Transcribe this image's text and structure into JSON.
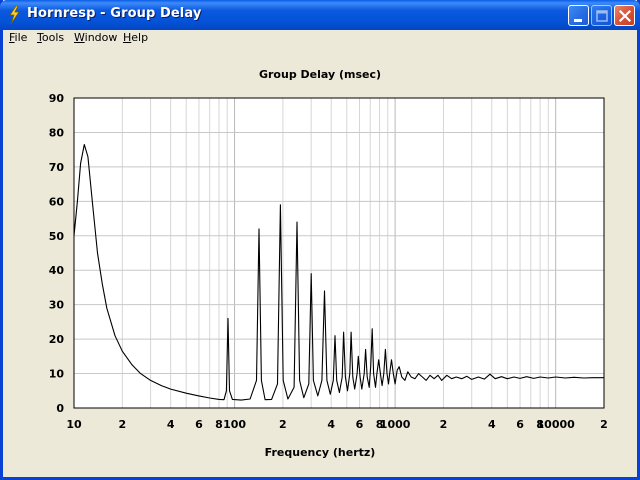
{
  "window": {
    "title": "Hornresp - Group Delay",
    "icon": "lightning-icon"
  },
  "menu": [
    {
      "label": "File",
      "mnemonic": "F",
      "rest": "ile"
    },
    {
      "label": "Tools",
      "mnemonic": "T",
      "rest": "ools"
    },
    {
      "label": "Window",
      "mnemonic": "W",
      "rest": "indow"
    },
    {
      "label": "Help",
      "mnemonic": "H",
      "rest": "elp"
    }
  ],
  "chart_data": {
    "type": "line",
    "title": "Group Delay (msec)",
    "xlabel": "Frequency (hertz)",
    "ylabel": "",
    "xscale": "log",
    "xlim": [
      10,
      20000
    ],
    "ylim": [
      0,
      90
    ],
    "grid": true,
    "yticks": [
      "0",
      "10",
      "20",
      "30",
      "40",
      "50",
      "60",
      "70",
      "80",
      "90"
    ],
    "xticks": [
      {
        "value": 10,
        "label": "10"
      },
      {
        "value": 20,
        "label": "2"
      },
      {
        "value": 40,
        "label": "4"
      },
      {
        "value": 60,
        "label": "6"
      },
      {
        "value": 80,
        "label": "8"
      },
      {
        "value": 100,
        "label": "100"
      },
      {
        "value": 200,
        "label": "2"
      },
      {
        "value": 400,
        "label": "4"
      },
      {
        "value": 600,
        "label": "6"
      },
      {
        "value": 800,
        "label": "8"
      },
      {
        "value": 1000,
        "label": "1000"
      },
      {
        "value": 2000,
        "label": "2"
      },
      {
        "value": 4000,
        "label": "4"
      },
      {
        "value": 6000,
        "label": "6"
      },
      {
        "value": 8000,
        "label": "8"
      },
      {
        "value": 10000,
        "label": "10000"
      },
      {
        "value": 20000,
        "label": "2"
      }
    ],
    "series": [
      {
        "color": "#000000",
        "points": [
          [
            10,
            50
          ],
          [
            10.5,
            60
          ],
          [
            11,
            71
          ],
          [
            11.6,
            76.5
          ],
          [
            12.2,
            73
          ],
          [
            13,
            60
          ],
          [
            14,
            45
          ],
          [
            15,
            36
          ],
          [
            16,
            29
          ],
          [
            18,
            21
          ],
          [
            20,
            16.5
          ],
          [
            23,
            12.5
          ],
          [
            26,
            10
          ],
          [
            30,
            8
          ],
          [
            35,
            6.5
          ],
          [
            40,
            5.5
          ],
          [
            50,
            4.3
          ],
          [
            60,
            3.5
          ],
          [
            70,
            2.9
          ],
          [
            80,
            2.5
          ],
          [
            86,
            2.4
          ],
          [
            89,
            5
          ],
          [
            91,
            26
          ],
          [
            93,
            5
          ],
          [
            97,
            2.5
          ],
          [
            110,
            2.3
          ],
          [
            125,
            2.6
          ],
          [
            137,
            8
          ],
          [
            142,
            52
          ],
          [
            147,
            8
          ],
          [
            155,
            2.4
          ],
          [
            170,
            2.5
          ],
          [
            185,
            7
          ],
          [
            193,
            59
          ],
          [
            201,
            8
          ],
          [
            215,
            2.6
          ],
          [
            235,
            6
          ],
          [
            245,
            54
          ],
          [
            254,
            8
          ],
          [
            270,
            3
          ],
          [
            290,
            7
          ],
          [
            300,
            39
          ],
          [
            310,
            8
          ],
          [
            330,
            3.5
          ],
          [
            350,
            8
          ],
          [
            363,
            34
          ],
          [
            376,
            8
          ],
          [
            395,
            4
          ],
          [
            412,
            8
          ],
          [
            422,
            21
          ],
          [
            433,
            8
          ],
          [
            450,
            4.5
          ],
          [
            468,
            9
          ],
          [
            478,
            22
          ],
          [
            490,
            9
          ],
          [
            505,
            5
          ],
          [
            522,
            10
          ],
          [
            532,
            22
          ],
          [
            545,
            9
          ],
          [
            560,
            5.5
          ],
          [
            580,
            10
          ],
          [
            590,
            15
          ],
          [
            605,
            9
          ],
          [
            620,
            5.5
          ],
          [
            642,
            10
          ],
          [
            655,
            17
          ],
          [
            670,
            9
          ],
          [
            690,
            6
          ],
          [
            705,
            12
          ],
          [
            720,
            23
          ],
          [
            735,
            10
          ],
          [
            755,
            6
          ],
          [
            770,
            10
          ],
          [
            790,
            14
          ],
          [
            810,
            10
          ],
          [
            830,
            6.5
          ],
          [
            850,
            10
          ],
          [
            870,
            17
          ],
          [
            890,
            10
          ],
          [
            910,
            7
          ],
          [
            930,
            11
          ],
          [
            950,
            14
          ],
          [
            975,
            10
          ],
          [
            1000,
            7
          ],
          [
            1030,
            11
          ],
          [
            1060,
            12
          ],
          [
            1100,
            9
          ],
          [
            1150,
            8
          ],
          [
            1200,
            10.5
          ],
          [
            1260,
            9
          ],
          [
            1330,
            8.5
          ],
          [
            1400,
            10
          ],
          [
            1480,
            9
          ],
          [
            1560,
            8
          ],
          [
            1650,
            9.5
          ],
          [
            1750,
            8.5
          ],
          [
            1850,
            9.5
          ],
          [
            1950,
            8
          ],
          [
            2100,
            9.5
          ],
          [
            2250,
            8.5
          ],
          [
            2400,
            9
          ],
          [
            2600,
            8.5
          ],
          [
            2800,
            9.2
          ],
          [
            3000,
            8.3
          ],
          [
            3300,
            9
          ],
          [
            3600,
            8.4
          ],
          [
            3900,
            9.8
          ],
          [
            4200,
            8.5
          ],
          [
            4600,
            9.1
          ],
          [
            5000,
            8.5
          ],
          [
            5500,
            9
          ],
          [
            6000,
            8.6
          ],
          [
            6600,
            9.1
          ],
          [
            7300,
            8.6
          ],
          [
            8000,
            9
          ],
          [
            9000,
            8.7
          ],
          [
            10000,
            9
          ],
          [
            11500,
            8.7
          ],
          [
            13000,
            8.9
          ],
          [
            15000,
            8.7
          ],
          [
            17000,
            8.8
          ],
          [
            20000,
            8.8
          ]
        ]
      }
    ]
  }
}
